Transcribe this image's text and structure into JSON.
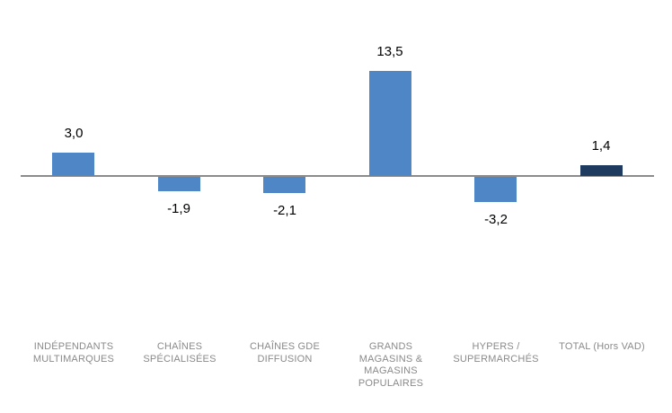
{
  "chart_data": {
    "type": "bar",
    "categories": [
      [
        "INDÉPENDANTS",
        "MULTIMARQUES"
      ],
      [
        "CHAÎNES",
        "SPÉCIALISÉES"
      ],
      [
        "CHAÎNES GDE",
        "DIFFUSION"
      ],
      [
        "GRANDS",
        "MAGASINS &",
        "MAGASINS",
        "POPULAIRES"
      ],
      [
        "HYPERS /",
        "SUPERMARCHÉS"
      ],
      [
        "TOTAL (Hors VAD)"
      ]
    ],
    "values": [
      3.0,
      -1.9,
      -2.1,
      13.5,
      -3.2,
      1.4
    ],
    "value_labels": [
      "3,0",
      "-1,9",
      "-2,1",
      "13,5",
      "-3,2",
      "1,4"
    ],
    "bar_colors": [
      "#4E86C6",
      "#4E86C6",
      "#4E86C6",
      "#4E86C6",
      "#4E86C6",
      "#1F3A5F"
    ],
    "axis_color": "#8C8C8C",
    "value_label_color": "#000000",
    "category_label_color": "#8A8A8A",
    "title": "",
    "xlabel": "",
    "ylabel": "",
    "ylim": [
      -3.2,
      13.5
    ],
    "gridlines": false,
    "legend": false
  }
}
